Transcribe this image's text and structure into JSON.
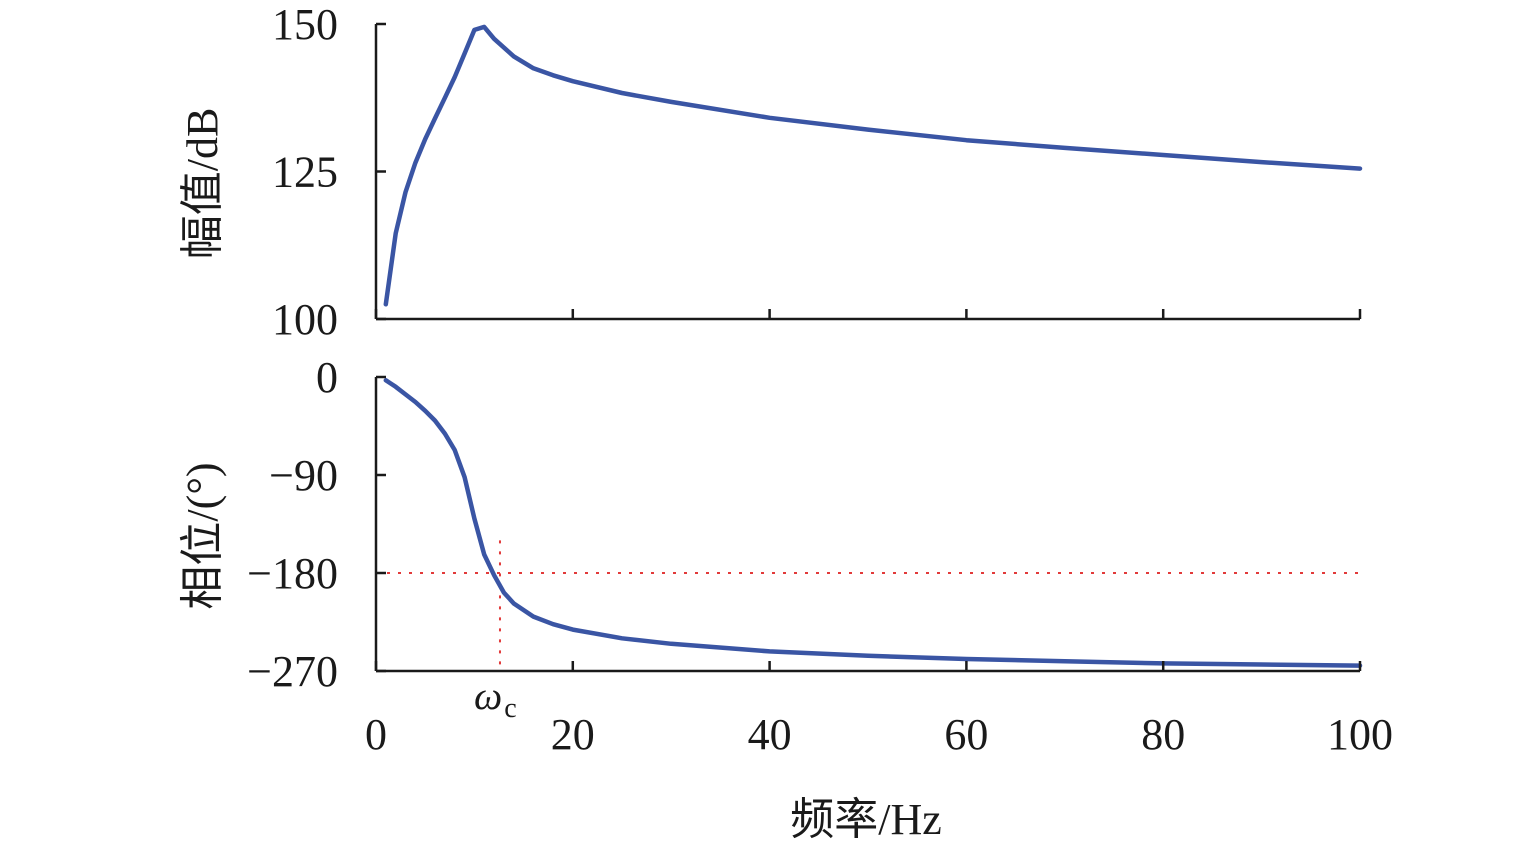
{
  "chart_data": [
    {
      "type": "line",
      "panel": "magnitude",
      "ylabel": "幅值/dB",
      "xlabel": "",
      "xlim": [
        0,
        100
      ],
      "ylim": [
        100,
        150
      ],
      "xticks": [
        0,
        20,
        40,
        60,
        80,
        100
      ],
      "yticks": [
        100,
        125,
        150
      ],
      "ytick_labels": [
        "100",
        "125",
        "150"
      ],
      "grid": false,
      "series": [
        {
          "color": "#3a55a4",
          "x": [
            1,
            2,
            3,
            4,
            5,
            6,
            7,
            8,
            9,
            10,
            11,
            12,
            14,
            16,
            18,
            20,
            25,
            30,
            40,
            50,
            60,
            70,
            80,
            90,
            100
          ],
          "y": [
            102.5,
            114.5,
            121.5,
            126.5,
            130.5,
            134,
            137.5,
            141,
            145,
            149,
            149.5,
            147.5,
            144.5,
            142.5,
            141.3,
            140.3,
            138.3,
            136.8,
            134.1,
            132.1,
            130.3,
            129,
            127.8,
            126.6,
            125.5
          ]
        }
      ]
    },
    {
      "type": "line",
      "panel": "phase",
      "ylabel": "相位/(°)",
      "xlabel": "频率/Hz",
      "xlim": [
        0,
        100
      ],
      "ylim": [
        -270,
        0
      ],
      "xticks": [
        0,
        20,
        40,
        60,
        80,
        100
      ],
      "xtick_labels": [
        "0",
        "20",
        "40",
        "60",
        "80",
        "100"
      ],
      "yticks": [
        0,
        -90,
        -180,
        -270
      ],
      "ytick_labels": [
        "0",
        "−90",
        "−180",
        "−270"
      ],
      "grid": false,
      "series": [
        {
          "color": "#3a55a4",
          "x": [
            1,
            2,
            3,
            4,
            5,
            6,
            7,
            8,
            9,
            10,
            11,
            12,
            13,
            14,
            16,
            18,
            20,
            25,
            30,
            40,
            50,
            60,
            70,
            80,
            90,
            100
          ],
          "y": [
            -3,
            -9,
            -16,
            -23,
            -31,
            -40,
            -52,
            -67,
            -92,
            -130,
            -163,
            -182,
            -198,
            -208,
            -220,
            -227,
            -232,
            -240,
            -245,
            -252,
            -256,
            -259,
            -261,
            -263,
            -264,
            -265
          ]
        }
      ],
      "reference_lines": {
        "color": "#e23a3a",
        "horizontal_y": -180,
        "vertical_x": 12.6,
        "vertical_y_top": -150
      },
      "annotation": {
        "text": "ω",
        "subscript": "c",
        "x": 12.6
      }
    }
  ]
}
